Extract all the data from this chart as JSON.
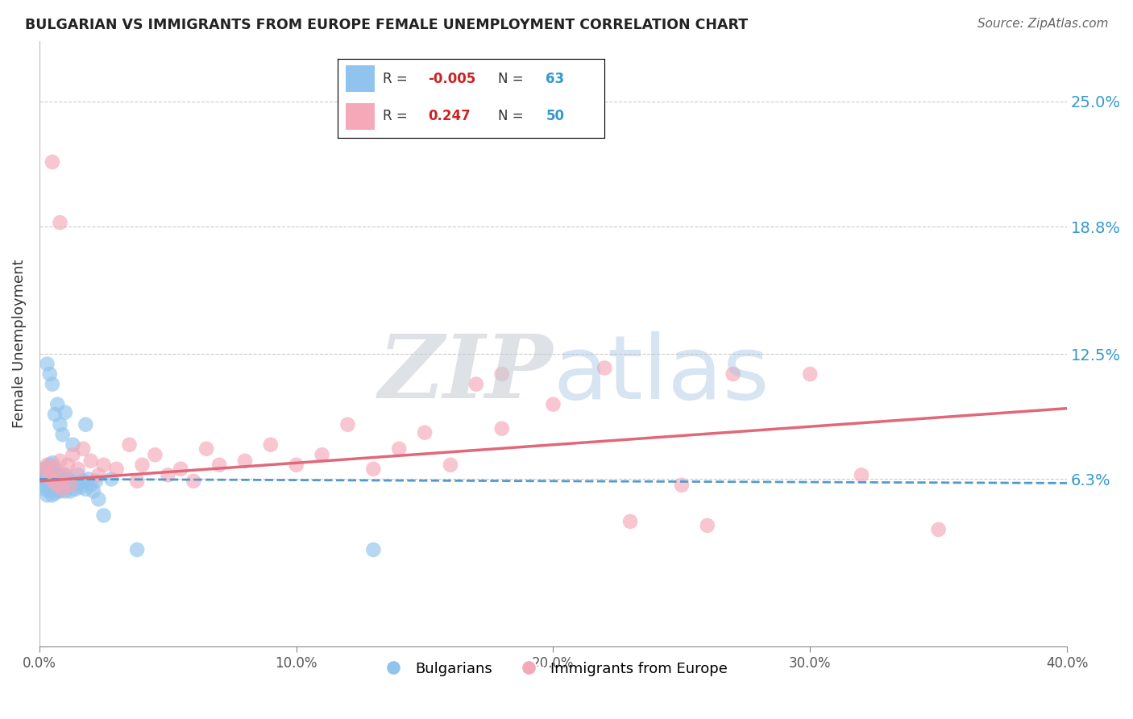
{
  "title": "BULGARIAN VS IMMIGRANTS FROM EUROPE FEMALE UNEMPLOYMENT CORRELATION CHART",
  "source": "Source: ZipAtlas.com",
  "ylabel": "Female Unemployment",
  "xlim": [
    0.0,
    0.4
  ],
  "ylim": [
    -0.02,
    0.28
  ],
  "yticks": [
    0.063,
    0.125,
    0.188,
    0.25
  ],
  "ytick_labels": [
    "6.3%",
    "12.5%",
    "18.8%",
    "25.0%"
  ],
  "xticks": [
    0.0,
    0.1,
    0.2,
    0.3,
    0.4
  ],
  "xtick_labels": [
    "0.0%",
    "10.0%",
    "20.0%",
    "30.0%",
    "40.0%"
  ],
  "R_blue": -0.005,
  "N_blue": 63,
  "R_pink": 0.247,
  "N_pink": 50,
  "blue_color": "#90c4ee",
  "pink_color": "#f4a8b8",
  "blue_line_color": "#5599cc",
  "pink_line_color": "#e06878",
  "blue_x": [
    0.001,
    0.001,
    0.002,
    0.002,
    0.002,
    0.003,
    0.003,
    0.003,
    0.003,
    0.004,
    0.004,
    0.004,
    0.004,
    0.005,
    0.005,
    0.005,
    0.005,
    0.005,
    0.006,
    0.006,
    0.006,
    0.006,
    0.007,
    0.007,
    0.007,
    0.008,
    0.008,
    0.008,
    0.009,
    0.009,
    0.01,
    0.01,
    0.01,
    0.011,
    0.011,
    0.012,
    0.012,
    0.013,
    0.014,
    0.015,
    0.015,
    0.016,
    0.017,
    0.018,
    0.019,
    0.02,
    0.021,
    0.022,
    0.023,
    0.025,
    0.003,
    0.004,
    0.005,
    0.006,
    0.007,
    0.008,
    0.009,
    0.01,
    0.013,
    0.018,
    0.028,
    0.038,
    0.13
  ],
  "blue_y": [
    0.06,
    0.065,
    0.058,
    0.063,
    0.068,
    0.055,
    0.06,
    0.064,
    0.068,
    0.057,
    0.061,
    0.064,
    0.07,
    0.055,
    0.059,
    0.062,
    0.066,
    0.071,
    0.056,
    0.06,
    0.063,
    0.067,
    0.058,
    0.062,
    0.065,
    0.057,
    0.061,
    0.065,
    0.059,
    0.062,
    0.057,
    0.061,
    0.065,
    0.059,
    0.063,
    0.057,
    0.062,
    0.06,
    0.058,
    0.061,
    0.065,
    0.059,
    0.062,
    0.058,
    0.063,
    0.06,
    0.057,
    0.062,
    0.053,
    0.045,
    0.12,
    0.115,
    0.11,
    0.095,
    0.1,
    0.09,
    0.085,
    0.096,
    0.08,
    0.09,
    0.063,
    0.028,
    0.028
  ],
  "pink_x": [
    0.002,
    0.003,
    0.004,
    0.005,
    0.006,
    0.007,
    0.008,
    0.009,
    0.01,
    0.011,
    0.012,
    0.013,
    0.015,
    0.017,
    0.02,
    0.023,
    0.025,
    0.03,
    0.035,
    0.038,
    0.04,
    0.045,
    0.05,
    0.055,
    0.06,
    0.065,
    0.07,
    0.08,
    0.09,
    0.1,
    0.11,
    0.12,
    0.13,
    0.14,
    0.15,
    0.16,
    0.18,
    0.2,
    0.22,
    0.25,
    0.27,
    0.3,
    0.32,
    0.35,
    0.17,
    0.26,
    0.23,
    0.005,
    0.008,
    0.18
  ],
  "pink_y": [
    0.068,
    0.07,
    0.065,
    0.062,
    0.068,
    0.06,
    0.072,
    0.058,
    0.065,
    0.07,
    0.06,
    0.075,
    0.068,
    0.078,
    0.072,
    0.065,
    0.07,
    0.068,
    0.08,
    0.062,
    0.07,
    0.075,
    0.065,
    0.068,
    0.062,
    0.078,
    0.07,
    0.072,
    0.08,
    0.07,
    0.075,
    0.09,
    0.068,
    0.078,
    0.086,
    0.07,
    0.088,
    0.1,
    0.118,
    0.06,
    0.115,
    0.115,
    0.065,
    0.038,
    0.11,
    0.04,
    0.042,
    0.22,
    0.19,
    0.115
  ],
  "blue_trend_x": [
    0.0,
    0.4
  ],
  "blue_trend_y": [
    0.063,
    0.061
  ],
  "pink_trend_x": [
    0.0,
    0.4
  ],
  "pink_trend_y": [
    0.062,
    0.098
  ]
}
